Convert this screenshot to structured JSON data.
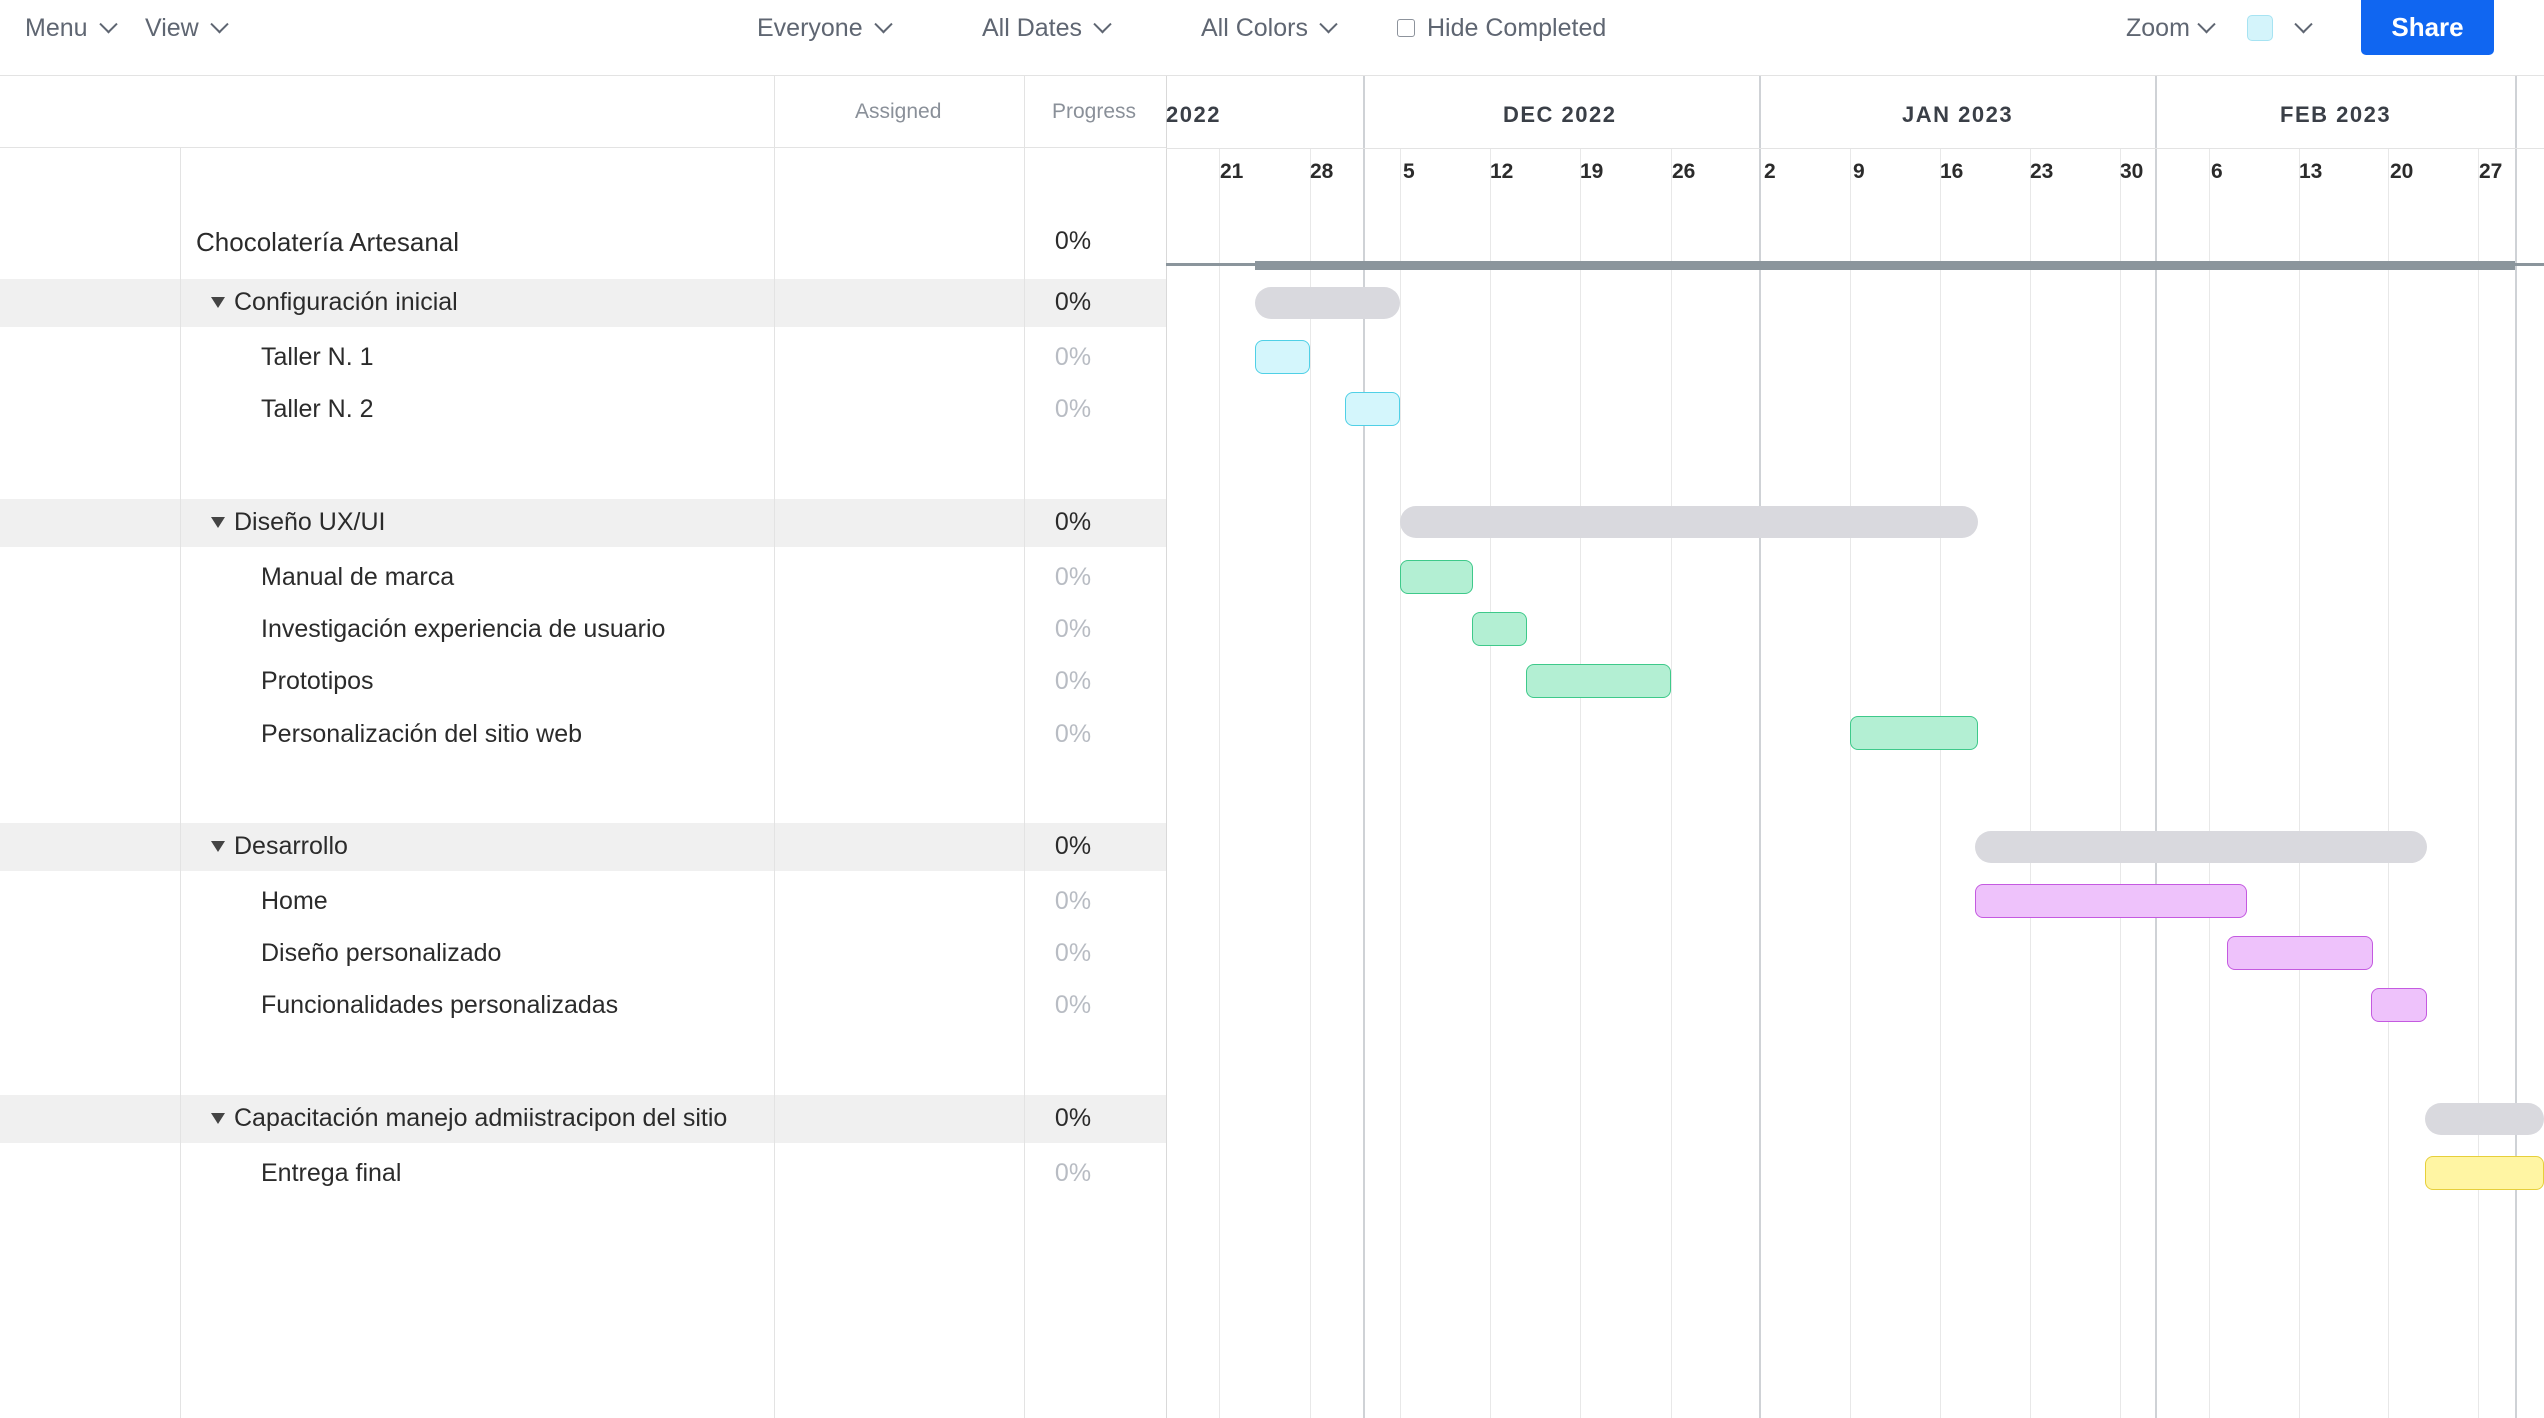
{
  "toolbar": {
    "menu_label": "Menu",
    "view_label": "View",
    "everyone_label": "Everyone",
    "all_dates_label": "All Dates",
    "all_colors_label": "All Colors",
    "hide_completed_label": "Hide Completed",
    "zoom_label": "Zoom",
    "share_label": "Share"
  },
  "columns": {
    "assigned_header": "Assigned",
    "progress_header": "Progress"
  },
  "timeline": {
    "months": [
      "2022",
      "DEC 2022",
      "JAN 2023",
      "FEB 2023"
    ],
    "days": [
      "21",
      "28",
      "5",
      "12",
      "19",
      "26",
      "2",
      "9",
      "16",
      "23",
      "30",
      "6",
      "13",
      "20",
      "27"
    ]
  },
  "project": {
    "name": "Chocolatería Artesanal",
    "progress": "0%"
  },
  "groups": [
    {
      "name": "Configuración inicial",
      "progress": "0%",
      "tasks": [
        {
          "name": "Taller N. 1",
          "progress": "0%"
        },
        {
          "name": "Taller N. 2",
          "progress": "0%"
        }
      ]
    },
    {
      "name": "Diseño UX/UI",
      "progress": "0%",
      "tasks": [
        {
          "name": "Manual de marca",
          "progress": "0%"
        },
        {
          "name": "Investigación experiencia de usuario",
          "progress": "0%"
        },
        {
          "name": "Prototipos",
          "progress": "0%"
        },
        {
          "name": "Personalización del sitio web",
          "progress": "0%"
        }
      ]
    },
    {
      "name": "Desarrollo",
      "progress": "0%",
      "tasks": [
        {
          "name": "Home",
          "progress": "0%"
        },
        {
          "name": "Diseño personalizado",
          "progress": "0%"
        },
        {
          "name": "Funcionalidades personalizadas",
          "progress": "0%"
        }
      ]
    },
    {
      "name": "Capacitación manejo admiistracipon del sitio",
      "progress": "0%",
      "tasks": [
        {
          "name": "Entrega final",
          "progress": "0%"
        }
      ]
    }
  ],
  "colors": {
    "accent": "#1066f1",
    "task_cyan": "#d4f6fc",
    "task_green": "#b3efd3",
    "task_purple": "#eec2fb",
    "task_yellow": "#fff5a3",
    "summary_gray": "#d9d9de"
  }
}
